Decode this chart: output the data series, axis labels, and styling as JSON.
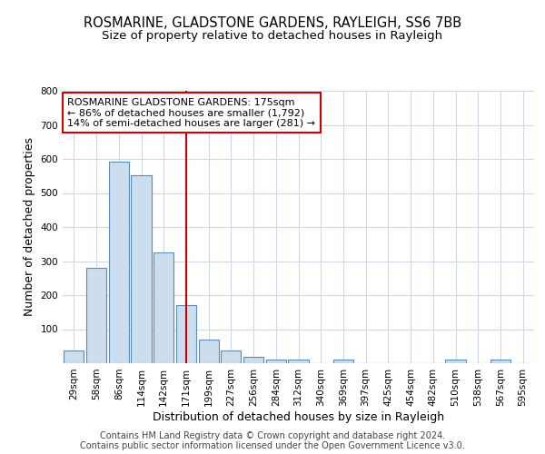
{
  "title_line1": "ROSMARINE, GLADSTONE GARDENS, RAYLEIGH, SS6 7BB",
  "title_line2": "Size of property relative to detached houses in Rayleigh",
  "xlabel": "Distribution of detached houses by size in Rayleigh",
  "ylabel": "Number of detached properties",
  "categories": [
    "29sqm",
    "58sqm",
    "86sqm",
    "114sqm",
    "142sqm",
    "171sqm",
    "199sqm",
    "227sqm",
    "256sqm",
    "284sqm",
    "312sqm",
    "340sqm",
    "369sqm",
    "397sqm",
    "425sqm",
    "454sqm",
    "482sqm",
    "510sqm",
    "538sqm",
    "567sqm",
    "595sqm"
  ],
  "values": [
    37,
    280,
    593,
    552,
    325,
    170,
    70,
    38,
    18,
    12,
    10,
    0,
    10,
    0,
    0,
    0,
    0,
    10,
    0,
    10,
    0
  ],
  "bar_color": "#ccdded",
  "bar_edge_color": "#5b8db8",
  "vline_index": 5,
  "vline_color": "#cc0000",
  "annotation_text": "ROSMARINE GLADSTONE GARDENS: 175sqm\n← 86% of detached houses are smaller (1,792)\n14% of semi-detached houses are larger (281) →",
  "annotation_box_facecolor": "#ffffff",
  "annotation_box_edgecolor": "#cc0000",
  "ylim": [
    0,
    800
  ],
  "yticks": [
    0,
    100,
    200,
    300,
    400,
    500,
    600,
    700,
    800
  ],
  "footer_line1": "Contains HM Land Registry data © Crown copyright and database right 2024.",
  "footer_line2": "Contains public sector information licensed under the Open Government Licence v3.0.",
  "plot_bg_color": "#ffffff",
  "fig_bg_color": "#ffffff",
  "grid_color": "#d0d8e8",
  "title_fontsize": 10.5,
  "subtitle_fontsize": 9.5,
  "axis_label_fontsize": 9,
  "tick_fontsize": 7.5,
  "annotation_fontsize": 8,
  "footer_fontsize": 7
}
